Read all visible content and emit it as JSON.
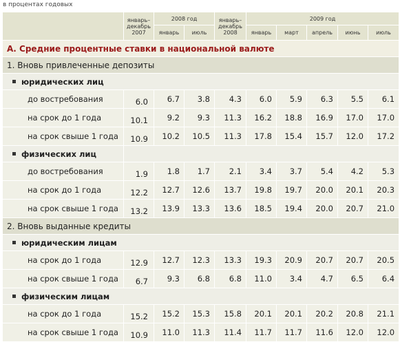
{
  "caption": "в процентах годовых",
  "header": {
    "col_2007": "январь–декабрь 2007",
    "year_2008": "2008 год",
    "col_2008_total": "январь–декабрь 2008",
    "year_2009": "2009 год",
    "months_2008": [
      "январь",
      "июль"
    ],
    "months_2009": [
      "январь",
      "март",
      "апрель",
      "июнь",
      "июль"
    ]
  },
  "section_a": "А. Средние процентные ставки в национальной валюте",
  "part1": {
    "title": "1. Вновь привлеченные депозиты",
    "groups": [
      {
        "title": "юридических лиц",
        "rows": [
          {
            "label": "до востребования",
            "values": [
              "6.0",
              "6.7",
              "3.8",
              "4.3",
              "6.0",
              "5.9",
              "6.3",
              "5.5",
              "6.1"
            ]
          },
          {
            "label": "на срок до 1 года",
            "values": [
              "10.1",
              "9.2",
              "9.3",
              "11.3",
              "16.2",
              "18.8",
              "16.9",
              "17.0",
              "17.0"
            ]
          },
          {
            "label": "на срок свыше 1 года",
            "values": [
              "10.9",
              "10.2",
              "10.5",
              "11.3",
              "17.8",
              "15.4",
              "15.7",
              "12.0",
              "17.2"
            ]
          }
        ]
      },
      {
        "title": "физических лиц",
        "rows": [
          {
            "label": "до востребования",
            "values": [
              "1.9",
              "1.8",
              "1.7",
              "2.1",
              "3.4",
              "3.7",
              "5.4",
              "4.2",
              "5.3"
            ]
          },
          {
            "label": "на срок до 1 года",
            "values": [
              "12.2",
              "12.7",
              "12.6",
              "13.7",
              "19.8",
              "19.7",
              "20.0",
              "20.1",
              "20.3"
            ]
          },
          {
            "label": "на срок свыше 1 года",
            "values": [
              "13.2",
              "13.9",
              "13.3",
              "13.6",
              "18.5",
              "19.4",
              "20.0",
              "20.7",
              "21.0"
            ]
          }
        ]
      }
    ]
  },
  "part2": {
    "title": "2. Вновь выданные кредиты",
    "groups": [
      {
        "title": "юридическим лицам",
        "rows": [
          {
            "label": "на срок до 1 года",
            "values": [
              "12.9",
              "12.7",
              "12.3",
              "13.3",
              "19.3",
              "20.9",
              "20.7",
              "20.7",
              "20.5"
            ]
          },
          {
            "label": "на срок свыше 1 года",
            "values": [
              "6.7",
              "9.3",
              "6.8",
              "6.8",
              "11.0",
              "3.4",
              "4.7",
              "6.5",
              "6.4"
            ]
          }
        ]
      },
      {
        "title": "физическим лицам",
        "rows": [
          {
            "label": "на срок до 1 года",
            "values": [
              "15.2",
              "15.2",
              "15.3",
              "15.8",
              "20.1",
              "20.1",
              "20.2",
              "20.8",
              "21.1"
            ]
          },
          {
            "label": "на срок свыше 1 года",
            "values": [
              "10.9",
              "11.0",
              "11.3",
              "11.4",
              "11.7",
              "11.7",
              "11.6",
              "12.0",
              "12.0"
            ]
          }
        ]
      }
    ]
  }
}
